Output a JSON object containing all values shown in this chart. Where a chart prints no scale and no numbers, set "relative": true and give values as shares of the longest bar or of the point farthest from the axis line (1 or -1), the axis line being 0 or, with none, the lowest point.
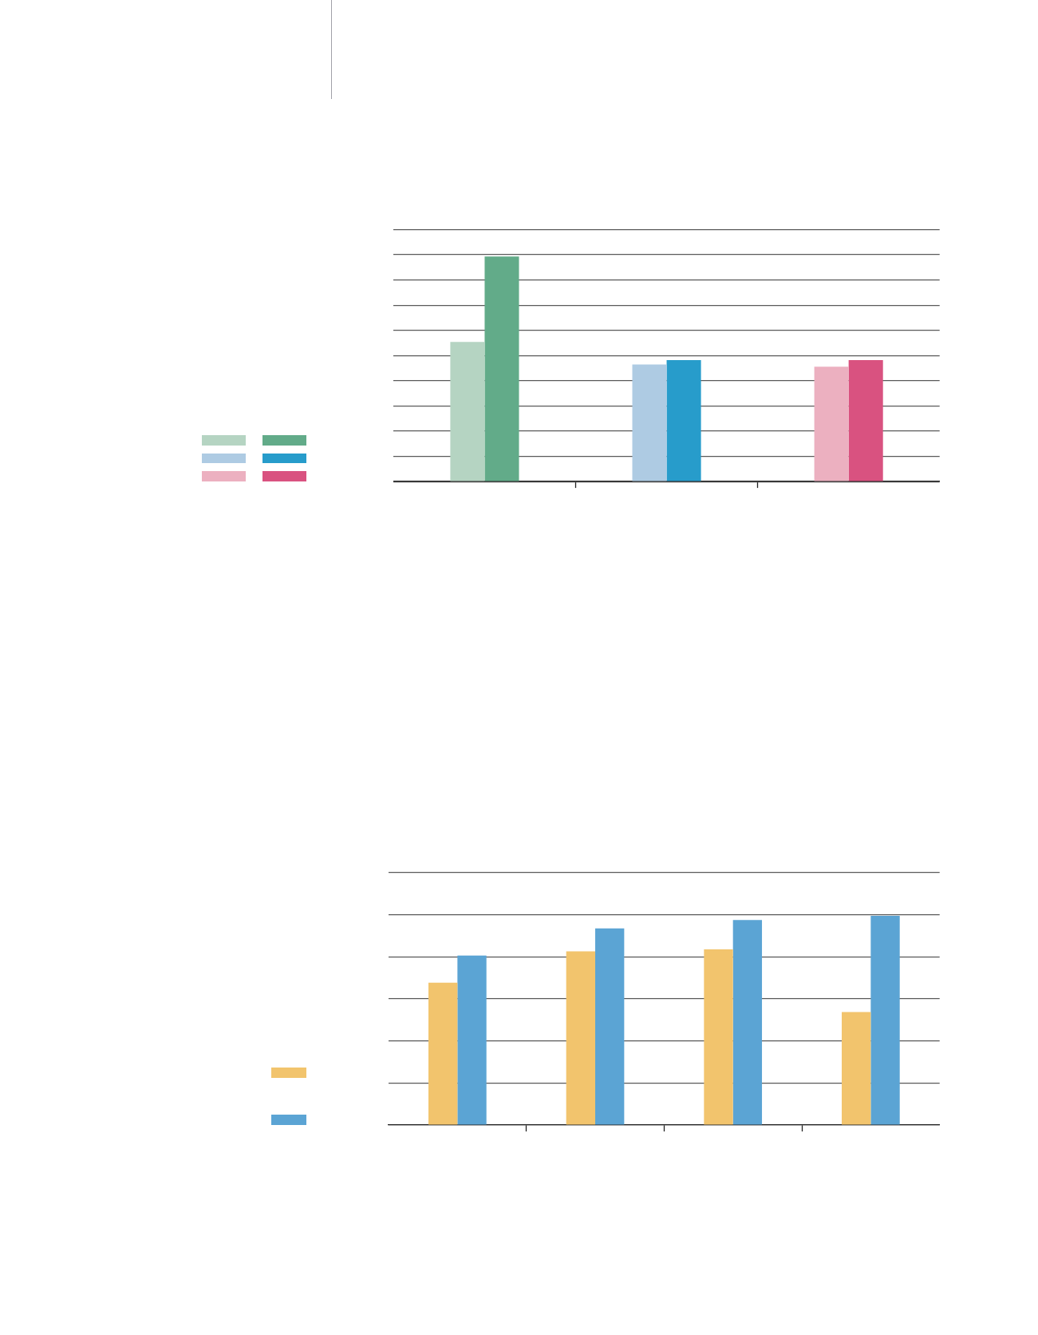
{
  "chart_data": [
    {
      "type": "bar",
      "relative": true,
      "categories": [
        null,
        null,
        null
      ],
      "series": [
        {
          "colors": [
            "#b5d4c2",
            "#aecbe3",
            "#ecb0c0"
          ],
          "values": [
            0.62,
            0.52,
            0.51
          ]
        },
        {
          "colors": [
            "#62ab89",
            "#279ccb",
            "#d95280"
          ],
          "values": [
            1,
            0.54,
            0.54
          ]
        }
      ],
      "grid": "y"
    },
    {
      "type": "bar",
      "relative": true,
      "categories": [
        null,
        null,
        null,
        null
      ],
      "series": [
        {
          "color": "#f2c46d",
          "values": [
            0.68,
            0.83,
            0.84,
            0.54
          ]
        },
        {
          "color": "#5ba4d4",
          "values": [
            0.81,
            0.94,
            0.98,
            1
          ]
        }
      ],
      "grid": "y"
    }
  ]
}
